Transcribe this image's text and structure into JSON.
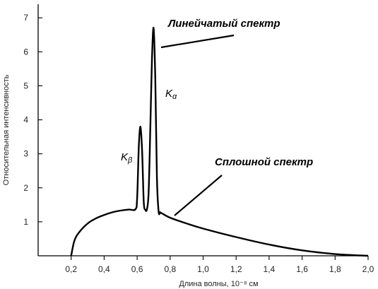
{
  "chart_data": {
    "type": "line",
    "xlabel": "Длина волны, 10⁻⁸ см",
    "ylabel": "Относительная интенсивность",
    "xlim": [
      0,
      2.0
    ],
    "ylim": [
      0,
      7.4
    ],
    "x_ticks": [
      0.2,
      0.4,
      0.6,
      0.8,
      1.0,
      1.2,
      1.4,
      1.6,
      1.8,
      2.0
    ],
    "x_tick_labels": [
      "0,2",
      "0,4",
      "0,6",
      "0,8",
      "1,0",
      "1,2",
      "1,4",
      "1,6",
      "1,8",
      "2,0"
    ],
    "y_ticks": [
      1,
      2,
      3,
      4,
      5,
      6,
      7
    ],
    "y_tick_labels": [
      "1",
      "2",
      "3",
      "4",
      "5",
      "6",
      "7"
    ],
    "grid": false,
    "series": [
      {
        "x": [
          0.2,
          0.22,
          0.25,
          0.3,
          0.35,
          0.4,
          0.45,
          0.5,
          0.55,
          0.59,
          0.6,
          0.61,
          0.62,
          0.63,
          0.64,
          0.65,
          0.66,
          0.67,
          0.68,
          0.69,
          0.7,
          0.71,
          0.72,
          0.73,
          0.74,
          0.75,
          0.8,
          0.9,
          1.0,
          1.2,
          1.4,
          1.6,
          1.8,
          1.9,
          2.0
        ],
        "y": [
          0.0,
          0.45,
          0.7,
          0.95,
          1.1,
          1.2,
          1.28,
          1.33,
          1.36,
          1.37,
          1.7,
          3.2,
          3.8,
          3.1,
          1.6,
          1.35,
          1.38,
          1.9,
          3.8,
          5.8,
          6.7,
          5.2,
          2.3,
          1.3,
          1.28,
          1.25,
          1.12,
          0.95,
          0.8,
          0.55,
          0.33,
          0.16,
          0.05,
          0.02,
          0.0
        ]
      }
    ],
    "annotations": [
      {
        "text": "Линейчатый спектр",
        "x": 0.72,
        "y": 6.25
      },
      {
        "text": "Сплошной спектр",
        "x": 0.82,
        "y": 1.15
      }
    ],
    "peak_labels": [
      {
        "base": "K",
        "sub": "β",
        "x": 0.62,
        "y": 2.9
      },
      {
        "base": "K",
        "sub": "α",
        "x": 0.71,
        "y": 4.8
      }
    ]
  }
}
